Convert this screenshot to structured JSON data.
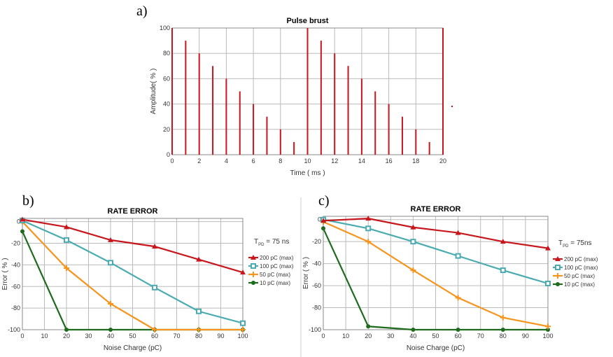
{
  "chart_data": [
    {
      "panel_label": "a)",
      "type": "bar",
      "title": "Pulse brust",
      "xlabel": "Time ( ms )",
      "ylabel": "Amplitude( % )",
      "xlim": [
        0,
        20
      ],
      "ylim": [
        0,
        100
      ],
      "xticks": [
        0,
        2,
        4,
        6,
        8,
        10,
        12,
        14,
        16,
        18,
        20
      ],
      "yticks": [
        0,
        20,
        40,
        60,
        80,
        100
      ],
      "grid": true,
      "color": "#c8161d",
      "x": [
        0,
        1,
        2,
        3,
        4,
        5,
        6,
        7,
        8,
        9,
        10,
        11,
        12,
        13,
        14,
        15,
        16,
        17,
        18,
        19,
        20
      ],
      "values": [
        100,
        90,
        80,
        70,
        60,
        50,
        40,
        30,
        20,
        10,
        100,
        90,
        80,
        70,
        60,
        50,
        40,
        30,
        20,
        10,
        100
      ]
    },
    {
      "panel_label": "b)",
      "type": "line",
      "title": "RATE ERROR",
      "xlabel": "Noise Charge (pC)",
      "ylabel": "Error ( % )",
      "xlim": [
        0,
        100
      ],
      "ylim": [
        -100,
        3
      ],
      "xticks": [
        0,
        10,
        20,
        30,
        40,
        50,
        60,
        70,
        80,
        90,
        100
      ],
      "yticks": [
        0,
        -20,
        -40,
        -60,
        -80,
        -100
      ],
      "grid": true,
      "legend_title": "T",
      "legend_title_sub": "PD",
      "legend_title_rest": " = 75 ns",
      "legend_position": "right",
      "x": [
        0,
        20,
        40,
        60,
        80,
        100
      ],
      "series": [
        {
          "name": "200 pC (max)",
          "color": "#c8161d",
          "marker": "triangle",
          "values": [
            2,
            -5,
            -17,
            -23,
            -35,
            -47
          ]
        },
        {
          "name": "100 pC (max)",
          "color": "#4aabb0",
          "marker": "square",
          "values": [
            1,
            -17,
            -38,
            -61,
            -83,
            -94
          ]
        },
        {
          "name": "50 pC (max)",
          "color": "#f7941d",
          "marker": "plus",
          "values": [
            0,
            -43,
            -76,
            -100,
            -100,
            -100
          ]
        },
        {
          "name": "10 pC (max)",
          "color": "#1e6b1e",
          "marker": "circle",
          "values": [
            -9,
            -100,
            -100,
            -100,
            -100,
            -100
          ]
        }
      ]
    },
    {
      "panel_label": "c)",
      "type": "line",
      "title": "RATE ERROR",
      "xlabel": "Noise Charge (pC)",
      "ylabel": "Error ( % )",
      "xlim": [
        0,
        100
      ],
      "ylim": [
        -100,
        3
      ],
      "xticks": [
        0,
        10,
        20,
        30,
        40,
        50,
        60,
        70,
        80,
        90,
        100
      ],
      "yticks": [
        0,
        -20,
        -40,
        -60,
        -80,
        -100
      ],
      "grid": true,
      "legend_title": "T",
      "legend_title_sub": "PD",
      "legend_title_rest": " = 75ns",
      "legend_position": "right",
      "x": [
        0,
        20,
        40,
        60,
        80,
        100
      ],
      "series": [
        {
          "name": "200 pC (max)",
          "color": "#c8161d",
          "marker": "triangle",
          "values": [
            -1,
            1,
            -7,
            -12,
            -20,
            -26
          ]
        },
        {
          "name": "100 pC (max)",
          "color": "#4aabb0",
          "marker": "square",
          "values": [
            0,
            -8,
            -20,
            -33,
            -46,
            -58
          ]
        },
        {
          "name": "50 pC (max)",
          "color": "#f7941d",
          "marker": "plus",
          "values": [
            -2,
            -20,
            -46,
            -71,
            -89,
            -97
          ]
        },
        {
          "name": "10 pC (max)",
          "color": "#1e6b1e",
          "marker": "circle",
          "values": [
            -8,
            -97,
            -100,
            -100,
            -100,
            -100
          ]
        }
      ]
    }
  ]
}
